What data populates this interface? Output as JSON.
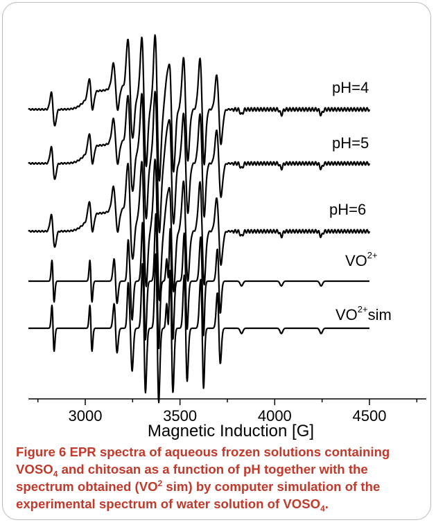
{
  "chart_data": {
    "type": "line",
    "xlabel": "Magnetic Induction [G]",
    "ylabel": "",
    "xlim": [
      2700,
      4800
    ],
    "xticks": [
      3000,
      3500,
      4000,
      4500
    ],
    "xtick_labels": [
      "3000",
      "3500",
      "4000",
      "4500"
    ],
    "grid": false,
    "series": [
      {
        "name": "pH=4",
        "label_main": "pH=4",
        "label_sup": ""
      },
      {
        "name": "pH=5",
        "label_main": "pH=5",
        "label_sup": ""
      },
      {
        "name": "pH=6",
        "label_main": "pH=6",
        "label_sup": ""
      },
      {
        "name": "VO2+",
        "label_main": "VO",
        "label_sup": "2+"
      },
      {
        "name": "VO2+sim",
        "label_main": "VO",
        "label_sup": "2+",
        "label_tail": "sim"
      }
    ]
  },
  "caption": {
    "lead": "Figure 6",
    "part1": " EPR spectra of aqueous frozen solutions containing VOSO",
    "sub1": "4",
    "part2": " and chitosan as a function of pH together with the spectrum obtained (VO",
    "sup1": "2",
    "part3": " sim) by computer simulation of the experimental spectrum of water solution of VOSO",
    "sub2": "4",
    "part4": "."
  }
}
